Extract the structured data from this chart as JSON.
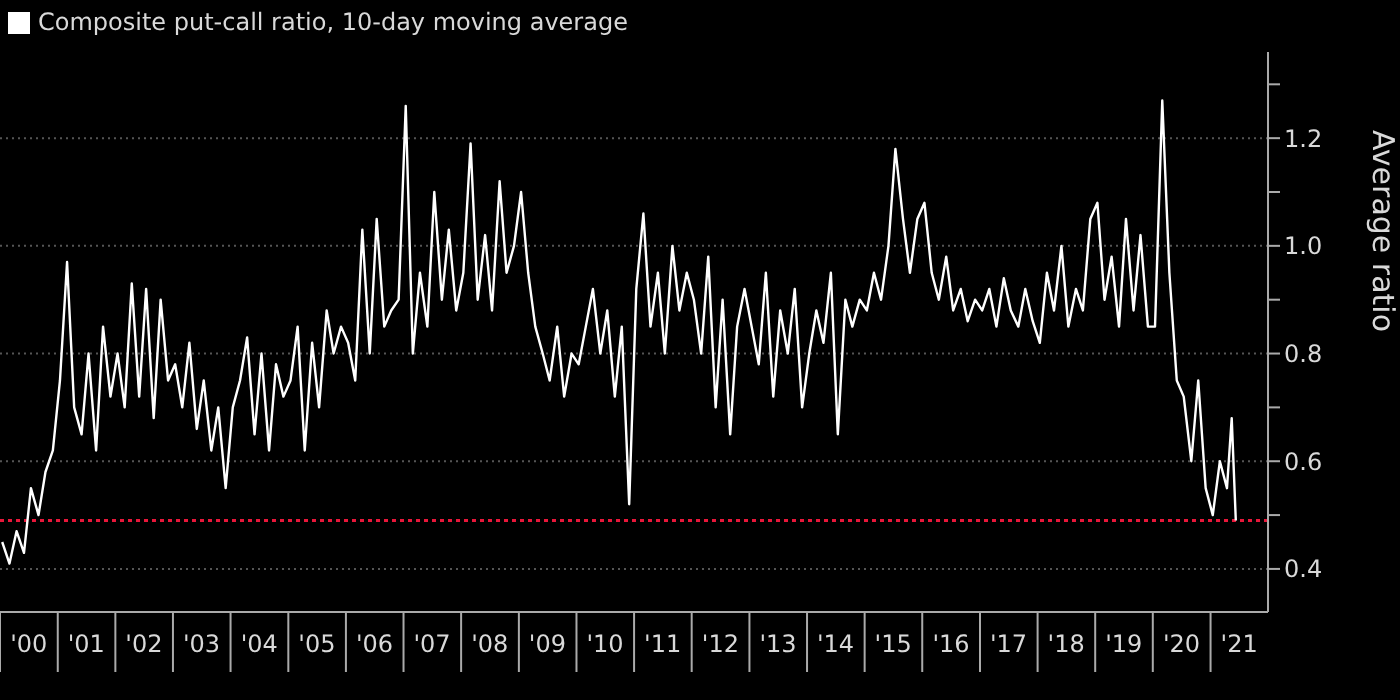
{
  "chart_data": {
    "type": "line",
    "ylabel": "Average ratio",
    "legend": "top left",
    "grid": "y",
    "xlim": [
      "2000-01-01",
      "2021-12-31"
    ],
    "xticks": [
      {
        "value": "2000-01-01",
        "label": null
      },
      {
        "value": "2000-07-01",
        "label": "'00"
      },
      {
        "value": "2001-01-01",
        "label": null
      },
      {
        "value": "2001-07-01",
        "label": "'01"
      },
      {
        "value": "2002-01-01",
        "label": null
      },
      {
        "value": "2002-07-01",
        "label": "'02"
      },
      {
        "value": "2003-01-01",
        "label": null
      },
      {
        "value": "2003-07-01",
        "label": "'03"
      },
      {
        "value": "2004-01-01",
        "label": null
      },
      {
        "value": "2004-07-01",
        "label": "'04"
      },
      {
        "value": "2005-01-01",
        "label": null
      },
      {
        "value": "2005-07-01",
        "label": "'05"
      },
      {
        "value": "2006-01-01",
        "label": null
      },
      {
        "value": "2006-07-01",
        "label": "'06"
      },
      {
        "value": "2007-01-01",
        "label": null
      },
      {
        "value": "2007-07-01",
        "label": "'07"
      },
      {
        "value": "2008-01-01",
        "label": null
      },
      {
        "value": "2008-07-01",
        "label": "'08"
      },
      {
        "value": "2009-01-01",
        "label": null
      },
      {
        "value": "2009-07-01",
        "label": "'09"
      },
      {
        "value": "2010-01-01",
        "label": null
      },
      {
        "value": "2010-07-01",
        "label": "'10"
      },
      {
        "value": "2011-01-01",
        "label": null
      },
      {
        "value": "2011-07-01",
        "label": "'11"
      },
      {
        "value": "2012-01-01",
        "label": null
      },
      {
        "value": "2012-07-01",
        "label": "'12"
      },
      {
        "value": "2013-01-01",
        "label": null
      },
      {
        "value": "2013-07-01",
        "label": "'13"
      },
      {
        "value": "2014-01-01",
        "label": null
      },
      {
        "value": "2014-07-01",
        "label": "'14"
      },
      {
        "value": "2015-01-01",
        "label": null
      },
      {
        "value": "2015-07-01",
        "label": "'15"
      },
      {
        "value": "2016-01-01",
        "label": null
      },
      {
        "value": "2016-07-01",
        "label": "'16"
      },
      {
        "value": "2017-01-01",
        "label": null
      },
      {
        "value": "2017-07-01",
        "label": "'17"
      },
      {
        "value": "2018-01-01",
        "label": null
      },
      {
        "value": "2018-07-01",
        "label": "'18"
      },
      {
        "value": "2019-01-01",
        "label": null
      },
      {
        "value": "2019-07-01",
        "label": "'19"
      },
      {
        "value": "2020-01-01",
        "label": null
      },
      {
        "value": "2020-07-01",
        "label": "'20"
      },
      {
        "value": "2021-01-01",
        "label": null
      },
      {
        "value": "2021-07-01",
        "label": "'21"
      }
    ],
    "ylim": [
      0.32,
      1.36
    ],
    "yticks": [
      0.4,
      {
        "value": 0.5,
        "label": null
      },
      0.6,
      {
        "value": 0.7,
        "label": null
      },
      0.8,
      {
        "value": 0.9,
        "label": null
      },
      {
        "value": 1,
        "label": "1.0"
      },
      {
        "value": 1.1,
        "label": null
      },
      1.2,
      {
        "value": 1.3,
        "label": null
      }
    ],
    "ref_lines": [
      {
        "axis": "y",
        "value": 0.49,
        "color": "#e8173a",
        "line_style": "dotted"
      }
    ],
    "series": [
      {
        "name": "Composite put-call ratio, 10-day moving average",
        "color": "#ffffff",
        "x": [
          "2000-01-15",
          "2000-03-01",
          "2000-04-15",
          "2000-06-01",
          "2000-07-15",
          "2000-09-01",
          "2000-10-15",
          "2000-12-01",
          "2001-01-15",
          "2001-03-01",
          "2001-04-15",
          "2001-06-01",
          "2001-07-15",
          "2001-09-01",
          "2001-10-15",
          "2001-12-01",
          "2002-01-15",
          "2002-03-01",
          "2002-04-15",
          "2002-06-01",
          "2002-07-15",
          "2002-09-01",
          "2002-10-15",
          "2002-12-01",
          "2003-01-15",
          "2003-03-01",
          "2003-04-15",
          "2003-06-01",
          "2003-07-15",
          "2003-09-01",
          "2003-10-15",
          "2003-12-01",
          "2004-01-15",
          "2004-03-01",
          "2004-04-15",
          "2004-06-01",
          "2004-07-15",
          "2004-09-01",
          "2004-10-15",
          "2004-12-01",
          "2005-01-15",
          "2005-03-01",
          "2005-04-15",
          "2005-06-01",
          "2005-07-15",
          "2005-09-01",
          "2005-10-15",
          "2005-12-01",
          "2006-01-15",
          "2006-03-01",
          "2006-04-15",
          "2006-06-01",
          "2006-07-15",
          "2006-09-01",
          "2006-10-15",
          "2006-12-01",
          "2007-01-15",
          "2007-03-01",
          "2007-04-15",
          "2007-06-01",
          "2007-07-15",
          "2007-09-01",
          "2007-10-15",
          "2007-12-01",
          "2008-01-15",
          "2008-03-01",
          "2008-04-15",
          "2008-06-01",
          "2008-07-15",
          "2008-09-01",
          "2008-10-15",
          "2008-12-01",
          "2009-01-15",
          "2009-03-01",
          "2009-04-15",
          "2009-06-01",
          "2009-07-15",
          "2009-09-01",
          "2009-10-15",
          "2009-12-01",
          "2010-01-15",
          "2010-03-01",
          "2010-04-15",
          "2010-06-01",
          "2010-07-15",
          "2010-09-01",
          "2010-10-15",
          "2010-12-01",
          "2011-01-15",
          "2011-03-01",
          "2011-04-15",
          "2011-06-01",
          "2011-07-15",
          "2011-09-01",
          "2011-10-15",
          "2011-12-01",
          "2012-01-15",
          "2012-03-01",
          "2012-04-15",
          "2012-06-01",
          "2012-07-15",
          "2012-09-01",
          "2012-10-15",
          "2012-12-01",
          "2013-01-15",
          "2013-03-01",
          "2013-04-15",
          "2013-06-01",
          "2013-07-15",
          "2013-09-01",
          "2013-10-15",
          "2013-12-01",
          "2014-01-15",
          "2014-03-01",
          "2014-04-15",
          "2014-06-01",
          "2014-07-15",
          "2014-09-01",
          "2014-10-15",
          "2014-12-01",
          "2015-01-15",
          "2015-03-01",
          "2015-04-15",
          "2015-06-01",
          "2015-07-15",
          "2015-09-01",
          "2015-10-15",
          "2015-12-01",
          "2016-01-15",
          "2016-03-01",
          "2016-04-15",
          "2016-06-01",
          "2016-07-15",
          "2016-09-01",
          "2016-10-15",
          "2016-12-01",
          "2017-01-15",
          "2017-03-01",
          "2017-04-15",
          "2017-06-01",
          "2017-07-15",
          "2017-09-01",
          "2017-10-15",
          "2017-12-01",
          "2018-01-15",
          "2018-03-01",
          "2018-04-15",
          "2018-06-01",
          "2018-07-15",
          "2018-09-01",
          "2018-10-15",
          "2018-12-01",
          "2019-01-15",
          "2019-03-01",
          "2019-04-15",
          "2019-06-01",
          "2019-07-15",
          "2019-09-01",
          "2019-10-15",
          "2019-12-01",
          "2020-01-15",
          "2020-03-01",
          "2020-04-15",
          "2020-06-01",
          "2020-07-15",
          "2020-09-01",
          "2020-10-15",
          "2020-12-01",
          "2021-01-15",
          "2021-03-01",
          "2021-04-15",
          "2021-05-15",
          "2021-06-10"
        ],
        "values": [
          0.45,
          0.41,
          0.47,
          0.43,
          0.55,
          0.5,
          0.58,
          0.62,
          0.75,
          0.97,
          0.7,
          0.65,
          0.8,
          0.62,
          0.85,
          0.72,
          0.8,
          0.7,
          0.93,
          0.72,
          0.92,
          0.68,
          0.9,
          0.75,
          0.78,
          0.7,
          0.82,
          0.66,
          0.75,
          0.62,
          0.7,
          0.55,
          0.7,
          0.75,
          0.83,
          0.65,
          0.8,
          0.62,
          0.78,
          0.72,
          0.75,
          0.85,
          0.62,
          0.82,
          0.7,
          0.88,
          0.8,
          0.85,
          0.82,
          0.75,
          1.03,
          0.8,
          1.05,
          0.85,
          0.88,
          0.9,
          1.26,
          0.8,
          0.95,
          0.85,
          1.1,
          0.9,
          1.03,
          0.88,
          0.95,
          1.19,
          0.9,
          1.02,
          0.88,
          1.12,
          0.95,
          1.0,
          1.1,
          0.95,
          0.85,
          0.8,
          0.75,
          0.85,
          0.72,
          0.8,
          0.78,
          0.85,
          0.92,
          0.8,
          0.88,
          0.72,
          0.85,
          0.52,
          0.92,
          1.06,
          0.85,
          0.95,
          0.8,
          1.0,
          0.88,
          0.95,
          0.9,
          0.8,
          0.98,
          0.7,
          0.9,
          0.65,
          0.85,
          0.92,
          0.85,
          0.78,
          0.95,
          0.72,
          0.88,
          0.8,
          0.92,
          0.7,
          0.8,
          0.88,
          0.82,
          0.95,
          0.65,
          0.9,
          0.85,
          0.9,
          0.88,
          0.95,
          0.9,
          1.0,
          1.18,
          1.05,
          0.95,
          1.05,
          1.08,
          0.95,
          0.9,
          0.98,
          0.88,
          0.92,
          0.86,
          0.9,
          0.88,
          0.92,
          0.85,
          0.94,
          0.88,
          0.85,
          0.92,
          0.86,
          0.82,
          0.95,
          0.88,
          1.0,
          0.85,
          0.92,
          0.88,
          1.05,
          1.08,
          0.9,
          0.98,
          0.85,
          1.05,
          0.88,
          1.02,
          0.85,
          0.85,
          1.27,
          0.95,
          0.75,
          0.72,
          0.6,
          0.75,
          0.55,
          0.5,
          0.6,
          0.55,
          0.68,
          0.49
        ]
      }
    ]
  }
}
